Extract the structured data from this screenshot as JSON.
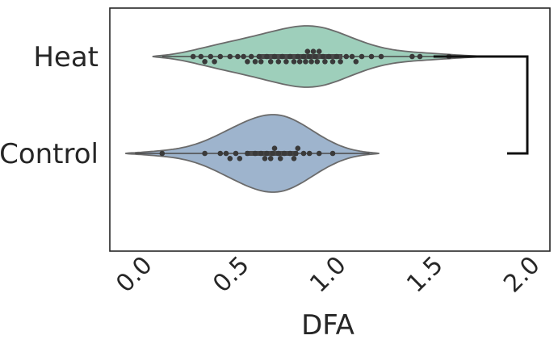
{
  "chart_data": {
    "type": "violin",
    "title": "",
    "xlabel": "DFA",
    "ylabel": "",
    "xlim": [
      -0.1,
      2.06
    ],
    "xticks": [
      "0.0",
      "0.5",
      "1.0",
      "1.5",
      "2.0"
    ],
    "xtick_values": [
      0.0,
      0.5,
      1.0,
      1.5,
      2.0
    ],
    "categories": [
      "Heat",
      "Control"
    ],
    "grid": false,
    "significance_bracket": {
      "between": [
        "Heat",
        "Control"
      ],
      "label": ""
    },
    "series": [
      {
        "category": "Heat",
        "color": "#9ecfbb",
        "range": [
          0.07,
          1.81
        ],
        "quartiles": [
          0.62,
          0.88,
          1.05
        ],
        "points": [
          0.28,
          0.32,
          0.34,
          0.37,
          0.39,
          0.42,
          0.47,
          0.51,
          0.54,
          0.56,
          0.58,
          0.6,
          0.62,
          0.63,
          0.66,
          0.68,
          0.7,
          0.72,
          0.74,
          0.76,
          0.78,
          0.8,
          0.82,
          0.83,
          0.85,
          0.86,
          0.87,
          0.88,
          0.89,
          0.9,
          0.91,
          0.92,
          0.93,
          0.95,
          0.96,
          0.98,
          1.0,
          1.02,
          1.04,
          1.07,
          1.1,
          1.12,
          1.15,
          1.2,
          1.25,
          1.41,
          1.45,
          1.6
        ]
      },
      {
        "category": "Control",
        "color": "#9eb4cd",
        "range": [
          -0.07,
          1.24
        ],
        "quartiles": [
          0.55,
          0.68,
          0.82
        ],
        "points": [
          0.12,
          0.34,
          0.42,
          0.45,
          0.47,
          0.5,
          0.52,
          0.56,
          0.6,
          0.63,
          0.65,
          0.66,
          0.68,
          0.69,
          0.7,
          0.72,
          0.73,
          0.75,
          0.78,
          0.8,
          0.81,
          0.82,
          0.85,
          0.88,
          0.93,
          1.0
        ]
      }
    ]
  }
}
